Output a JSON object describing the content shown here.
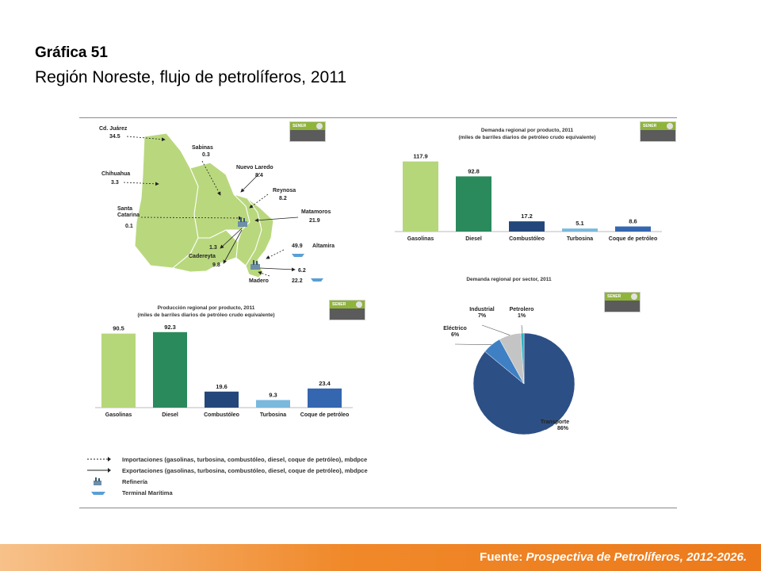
{
  "header": {
    "title": "Gráfica 51",
    "subtitle": "Región Noreste, flujo de petrolíferos, 2011"
  },
  "badge_label": "SENER",
  "map": {
    "labels": [
      {
        "name": "Cd. Juárez",
        "value": "34.5"
      },
      {
        "name": "Sabinas",
        "value": "0.3"
      },
      {
        "name": "Nuevo Laredo",
        "value": "8.4"
      },
      {
        "name": "Chihuahua",
        "value": "3.3"
      },
      {
        "name": "Reynosa",
        "value": "8.2"
      },
      {
        "name": "Santa Catarina",
        "value": "0.1"
      },
      {
        "name": "Matamoros",
        "value": "21.9"
      },
      {
        "name": "Altamira",
        "value": "49.9"
      },
      {
        "name": "Cadereyta",
        "value": "9.8"
      },
      {
        "name": "Madero",
        "value": "22.2"
      }
    ],
    "extra_values": [
      "1.3",
      "6.2"
    ]
  },
  "legend": {
    "items": [
      "Importaciones (gasolinas, turbosina, combustóleo, diesel, coque de petróleo), mbdpce",
      "Exportaciones (gasolinas, turbosina, combustóleo, diesel, coque de petróleo), mbdpce",
      "Refinería",
      "Terminal Marítima"
    ]
  },
  "footer": {
    "label": "Fuente:",
    "source": "Prospectiva de Petrolíferos, 2012-2026."
  },
  "chart_data": [
    {
      "type": "bar",
      "title": "Demanda regional por producto, 2011",
      "subtitle": "(miles de barriles diarios de petróleo crudo equivalente)",
      "categories": [
        "Gasolinas",
        "Diesel",
        "Combustóleo",
        "Turbosina",
        "Coque de petróleo"
      ],
      "values": [
        117.9,
        92.8,
        17.2,
        5.1,
        8.6
      ],
      "colors": [
        "#b6d67a",
        "#2a8a5c",
        "#23477a",
        "#7ab9dd",
        "#3566b0"
      ],
      "ylim": [
        0,
        120
      ]
    },
    {
      "type": "bar",
      "title": "Producción regional por producto, 2011",
      "subtitle": "(miles de barriles diarios de petróleo crudo equivalente)",
      "categories": [
        "Gasolinas",
        "Diesel",
        "Combustóleo",
        "Turbosina",
        "Coque de petróleo"
      ],
      "values": [
        90.5,
        92.3,
        19.6,
        9.3,
        23.4
      ],
      "colors": [
        "#b6d67a",
        "#2a8a5c",
        "#23477a",
        "#7ab9dd",
        "#3566b0"
      ],
      "ylim": [
        0,
        95
      ]
    },
    {
      "type": "pie",
      "title": "Demanda regional por sector, 2011",
      "slices": [
        {
          "name": "Transporte",
          "label": "86%",
          "value": 86,
          "color": "#2c4f86"
        },
        {
          "name": "Eléctrico",
          "label": "6%",
          "value": 6,
          "color": "#3f7fc4"
        },
        {
          "name": "Industrial",
          "label": "7%",
          "value": 7,
          "color": "#c4c4c4"
        },
        {
          "name": "Petrolero",
          "label": "1%",
          "value": 1,
          "color": "#29b3c3"
        }
      ]
    }
  ]
}
